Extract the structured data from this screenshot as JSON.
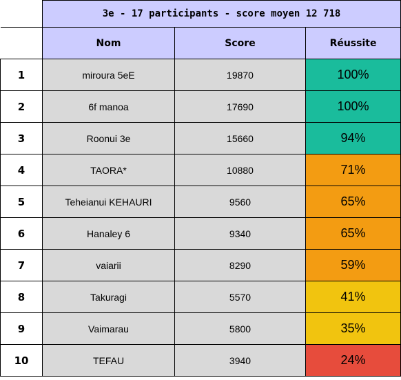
{
  "title": "3e - 17 participants - score moyen 12 718",
  "headers": {
    "name": "Nom",
    "score": "Score",
    "success": "Réussite"
  },
  "rows": [
    {
      "rank": "1",
      "name": "miroura 5eE",
      "score": "19870",
      "success": "100%",
      "color": "#1abc9c"
    },
    {
      "rank": "2",
      "name": "6f manoa",
      "score": "17690",
      "success": "100%",
      "color": "#1abc9c"
    },
    {
      "rank": "3",
      "name": "Roonui 3e",
      "score": "15660",
      "success": "94%",
      "color": "#1abc9c"
    },
    {
      "rank": "4",
      "name": "TAORA*",
      "score": "10880",
      "success": "71%",
      "color": "#f39c12"
    },
    {
      "rank": "5",
      "name": "Teheianui  KEHAURI",
      "score": "9560",
      "success": "65%",
      "color": "#f39c12"
    },
    {
      "rank": "6",
      "name": "Hanaley 6",
      "score": "9340",
      "success": "65%",
      "color": "#f39c12"
    },
    {
      "rank": "7",
      "name": "vaiarii",
      "score": "8290",
      "success": "59%",
      "color": "#f39c12"
    },
    {
      "rank": "8",
      "name": "Takuragi",
      "score": "5570",
      "success": "41%",
      "color": "#f1c40f"
    },
    {
      "rank": "9",
      "name": "Vaimarau",
      "score": "5800",
      "success": "35%",
      "color": "#f1c40f"
    },
    {
      "rank": "10",
      "name": "TEFAU",
      "score": "3940",
      "success": "24%",
      "color": "#e74c3c"
    }
  ]
}
